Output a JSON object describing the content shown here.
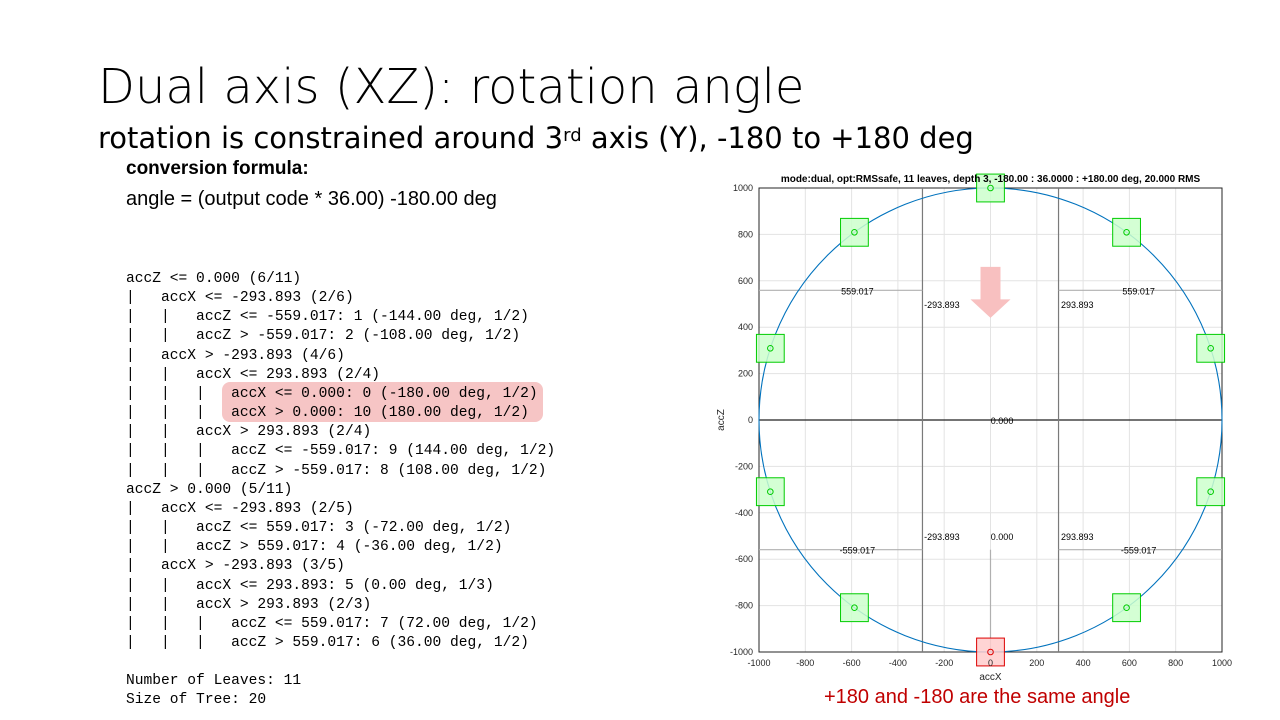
{
  "slide": {
    "title": "Dual axis (XZ): rotation angle",
    "subtitle_pre": "rotation is constrained around 3",
    "subtitle_sup": "rd",
    "subtitle_post": " axis (Y), -180 to +180 deg",
    "formula_label": "conversion formula:",
    "formula": "angle = (output code * 36.00) -180.00 deg",
    "tree_lines": [
      "accZ <= 0.000 (6/11)",
      "|   accX <= -293.893 (2/6)",
      "|   |   accZ <= -559.017: 1 (-144.00 deg, 1/2)",
      "|   |   accZ > -559.017: 2 (-108.00 deg, 1/2)",
      "|   accX > -293.893 (4/6)",
      "|   |   accX <= 293.893 (2/4)",
      "|   |   |   accX <= 0.000: 0 (-180.00 deg, 1/2)",
      "|   |   |   accX > 0.000: 10 (180.00 deg, 1/2)",
      "|   |   accX > 293.893 (2/4)",
      "|   |   |   accZ <= -559.017: 9 (144.00 deg, 1/2)",
      "|   |   |   accZ > -559.017: 8 (108.00 deg, 1/2)",
      "accZ > 0.000 (5/11)",
      "|   accX <= -293.893 (2/5)",
      "|   |   accZ <= 559.017: 3 (-72.00 deg, 1/2)",
      "|   |   accZ > 559.017: 4 (-36.00 deg, 1/2)",
      "|   accX > -293.893 (3/5)",
      "|   |   accX <= 293.893: 5 (0.00 deg, 1/3)",
      "|   |   accX > 293.893 (2/3)",
      "|   |   |   accZ <= 559.017: 7 (72.00 deg, 1/2)",
      "|   |   |   accZ > 559.017: 6 (36.00 deg, 1/2)"
    ],
    "leaves_line": "Number of Leaves: 11",
    "size_line": "Size of Tree: 20",
    "note": "+180 and -180 are the same angle"
  },
  "colors": {
    "highlight": "#f6c5c5",
    "note": "#c00000",
    "circle": "#0072bd",
    "leaf_fill": "#ccffcc",
    "leaf_stroke": "#00cc00",
    "selected_fill": "#ffcccc",
    "selected_stroke": "#dd0000",
    "arrow": "#f8c0c0"
  },
  "chart_data": {
    "type": "scatter",
    "title": "mode:dual, opt:RMSsafe, 11 leaves, depth 3, -180.00 : 36.0000 : +180.00 deg, 20.000 RMS",
    "xlabel": "accX",
    "ylabel": "accZ",
    "xlim": [
      -1000,
      1000
    ],
    "ylim": [
      -1000,
      1000
    ],
    "xticks": [
      -1000,
      -800,
      -600,
      -400,
      -200,
      0,
      200,
      400,
      600,
      800,
      1000
    ],
    "yticks": [
      -1000,
      -800,
      -600,
      -400,
      -200,
      0,
      200,
      400,
      600,
      800,
      1000
    ],
    "grid": true,
    "circle_radius": 1000,
    "box_half_size": 60,
    "points": [
      {
        "x": 0,
        "z": -1000,
        "selected": true
      },
      {
        "x": -587.785,
        "z": -809.017
      },
      {
        "x": -951.057,
        "z": -309.017
      },
      {
        "x": -951.057,
        "z": 309.017
      },
      {
        "x": -587.785,
        "z": 809.017
      },
      {
        "x": 0,
        "z": 1000
      },
      {
        "x": 587.785,
        "z": 809.017
      },
      {
        "x": 951.057,
        "z": 309.017
      },
      {
        "x": 951.057,
        "z": -309.017
      },
      {
        "x": 587.785,
        "z": -809.017
      }
    ],
    "split_lines": [
      {
        "type": "h",
        "z": 0,
        "x_from": -1000,
        "x_to": 1000
      },
      {
        "type": "v",
        "x": -293.893,
        "z_from": -1000,
        "z_to": 1000
      },
      {
        "type": "v",
        "x": 293.893,
        "z_from": -1000,
        "z_to": 1000
      },
      {
        "type": "h",
        "z": 559.017,
        "x_from": -1000,
        "x_to": -293.893
      },
      {
        "type": "h",
        "z": 559.017,
        "x_from": 293.893,
        "x_to": 1000
      },
      {
        "type": "h",
        "z": -559.017,
        "x_from": -1000,
        "x_to": -293.893
      },
      {
        "type": "h",
        "z": -559.017,
        "x_from": 293.893,
        "x_to": 1000
      },
      {
        "type": "v",
        "x": 0,
        "z_from": -1000,
        "z_to": -559.017
      }
    ],
    "labels": [
      {
        "text": "559.017",
        "x": -575,
        "z": 559.017
      },
      {
        "text": "559.017",
        "x": 640,
        "z": 559.017
      },
      {
        "text": "-293.893",
        "x": -210,
        "z": 500
      },
      {
        "text": "293.893",
        "x": 375,
        "z": 500
      },
      {
        "text": "0.000",
        "x": 50,
        "z": 0
      },
      {
        "text": "-293.893",
        "x": -210,
        "z": -500
      },
      {
        "text": "0.000",
        "x": 50,
        "z": -500
      },
      {
        "text": "293.893",
        "x": 375,
        "z": -500
      },
      {
        "text": "-559.017",
        "x": -575,
        "z": -559.017
      },
      {
        "text": "-559.017",
        "x": 640,
        "z": -559.017
      }
    ]
  }
}
